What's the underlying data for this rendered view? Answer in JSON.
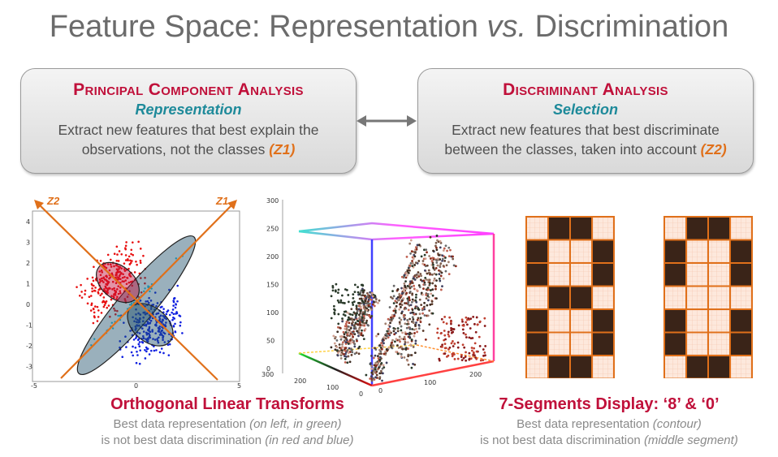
{
  "title": {
    "main": "Feature Space: Representation ",
    "vs": "vs.",
    "rest": " Discrimination"
  },
  "pca": {
    "heading": "Principal Component Analysis",
    "subtitle": "Representation",
    "line1": "Extract new features that best explain the",
    "line2": "observations, not the classes ",
    "z": "(Z1)"
  },
  "da": {
    "heading": "Discriminant Analysis",
    "subtitle": "Selection",
    "line1": "Extract new features that best discriminate",
    "line2": "between the classes, taken into account ",
    "z": "(Z2)"
  },
  "scatter": {
    "axis1_label": "Z1",
    "axis2_label": "Z2",
    "yticks": [
      "4",
      "3",
      "2",
      "1",
      "0",
      "-1",
      "-2",
      "-3"
    ],
    "xticks": [
      "-5",
      "0",
      "5"
    ]
  },
  "cube": {
    "zticks": [
      "300",
      "250",
      "200",
      "150",
      "100",
      "50",
      "0"
    ],
    "xticks_left": [
      "300",
      "200",
      "100",
      "0"
    ],
    "xticks_right": [
      "0",
      "100",
      "200"
    ]
  },
  "segments": {
    "digits": [
      "8",
      "0"
    ]
  },
  "caption_left": {
    "heading": "Orthogonal Linear Transforms",
    "line1_a": "Best data representation ",
    "line1_b": "(on left, in green)",
    "line2_a": "is not best data discrimination ",
    "line2_b": "(in red and blue)"
  },
  "caption_right": {
    "heading": "7-Segments Display: ‘8’ & ‘0’",
    "line1_a": "Best data representation ",
    "line1_b": "(contour)",
    "line2_a": "is not best data discrimination ",
    "line2_b": "(middle segment)"
  },
  "colors": {
    "accent": "#c0103a",
    "teal": "#1e8a9a",
    "orange": "#e0701a",
    "cell_dark": "#3a2418",
    "cell_light": "#fde8dc"
  }
}
